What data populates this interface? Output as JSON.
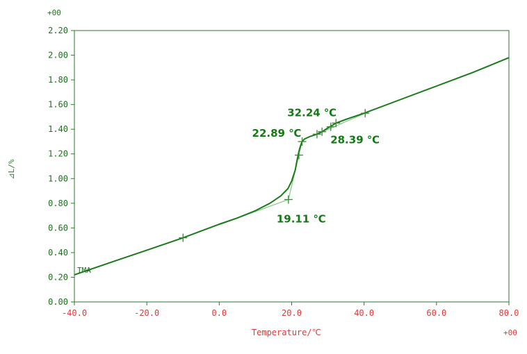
{
  "chart_data": {
    "type": "line",
    "title": "",
    "xlabel": "Temperature/℃",
    "ylabel": "⊿L/%",
    "x_multiplier": "+00",
    "y_multiplier": "+00",
    "xlim": [
      -40,
      80
    ],
    "ylim": [
      0,
      2.2
    ],
    "xticks": [
      "-40.0",
      "-20.0",
      "0.0",
      "20.0",
      "40.0",
      "60.0",
      "80.0"
    ],
    "yticks": [
      "0.00",
      "0.20",
      "0.40",
      "0.60",
      "0.80",
      "1.00",
      "1.20",
      "1.40",
      "1.60",
      "1.80",
      "2.00",
      "2.20"
    ],
    "grid": false,
    "series": [
      {
        "name": "TMA",
        "color": "#1a7a1a",
        "x": [
          -40,
          -30,
          -20,
          -10,
          0,
          5,
          10,
          14,
          17,
          19,
          20,
          21,
          21.5,
          22,
          22.5,
          22.89,
          23.5,
          25,
          27,
          28.39,
          30,
          32.24,
          35,
          40,
          50,
          60,
          70,
          80
        ],
        "y": [
          0.22,
          0.32,
          0.42,
          0.52,
          0.63,
          0.68,
          0.74,
          0.8,
          0.86,
          0.92,
          0.98,
          1.07,
          1.15,
          1.22,
          1.27,
          1.3,
          1.32,
          1.34,
          1.36,
          1.38,
          1.41,
          1.45,
          1.48,
          1.53,
          1.64,
          1.75,
          1.86,
          1.98
        ]
      }
    ],
    "tangent_lines": [
      {
        "from": [
          -10,
          0.52
        ],
        "to": [
          19.11,
          0.83
        ]
      },
      {
        "from": [
          19.11,
          0.83
        ],
        "to": [
          22.89,
          1.3
        ]
      },
      {
        "from": [
          27,
          1.36
        ],
        "to": [
          40.3,
          1.53
        ]
      }
    ],
    "markers": [
      {
        "x": -10,
        "y": 0.52
      },
      {
        "x": 19.11,
        "y": 0.83
      },
      {
        "x": 22,
        "y": 1.19
      },
      {
        "x": 22.89,
        "y": 1.3
      },
      {
        "x": 27,
        "y": 1.36
      },
      {
        "x": 28.39,
        "y": 1.38
      },
      {
        "x": 30.8,
        "y": 1.42
      },
      {
        "x": 32.24,
        "y": 1.45
      },
      {
        "x": 40.3,
        "y": 1.53
      }
    ],
    "annotations": [
      {
        "text": "32.24 ℃",
        "x": 32.24,
        "y": 1.45
      },
      {
        "text": "22.89 ℃",
        "x": 22.89,
        "y": 1.3
      },
      {
        "text": "28.39 ℃",
        "x": 28.39,
        "y": 1.38
      },
      {
        "text": "19.11 ℃",
        "x": 19.11,
        "y": 0.83
      }
    ],
    "series_label": "TMA"
  }
}
